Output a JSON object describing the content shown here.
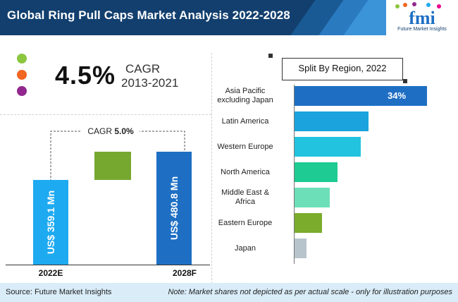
{
  "header": {
    "title": "Global Ring Pull Caps Market Analysis 2022-2028",
    "logo_text": "fmi",
    "logo_subtitle": "Future Market Insights"
  },
  "cagr": {
    "value": "4.5%",
    "label": "CAGR",
    "period": "2013-2021",
    "dot_colors": [
      "#8cc63f",
      "#f26522",
      "#92278f"
    ]
  },
  "growth": {
    "cagr_label": "CAGR",
    "cagr_value": "5.0%"
  },
  "chart_data": [
    {
      "type": "bar",
      "categories": [
        "2022E",
        "2028F"
      ],
      "values": [
        359.1,
        480.8
      ],
      "labels": [
        "US$ 359.1 Mn",
        "US$ 480.8 Mn"
      ],
      "colors": [
        "#1eaaf1",
        "#1e6fc4"
      ],
      "increment_color": "#76a830"
    },
    {
      "type": "bar",
      "title": "Split By Region, 2022",
      "orientation": "horizontal",
      "categories": [
        "Asia Pacific excluding Japan",
        "Latin America",
        "Western Europe",
        "North America",
        "Middle East & Africa",
        "Eastern Europe",
        "Japan"
      ],
      "category_lines": [
        [
          "Asia Pacific",
          "excluding Japan"
        ],
        [
          "Latin America"
        ],
        [
          "Western Europe"
        ],
        [
          "North America"
        ],
        [
          "Middle East &",
          "Africa"
        ],
        [
          "Eastern Europe"
        ],
        [
          "Japan"
        ]
      ],
      "values": [
        34,
        19,
        17,
        11,
        9,
        7,
        3
      ],
      "value_labels": [
        "34%",
        "",
        "",
        "",
        "",
        "",
        ""
      ],
      "colors": [
        "#1e6fc4",
        "#1aa3dc",
        "#22c3df",
        "#1dcb93",
        "#6ddfb8",
        "#7cac2c",
        "#b8c4cc"
      ],
      "note": "relative lengths estimated; only the leading share is labelled"
    }
  ],
  "footer": {
    "source": "Source: Future Market Insights",
    "note": "Note: Market shares not depicted as per actual scale - only for illustration purposes"
  }
}
